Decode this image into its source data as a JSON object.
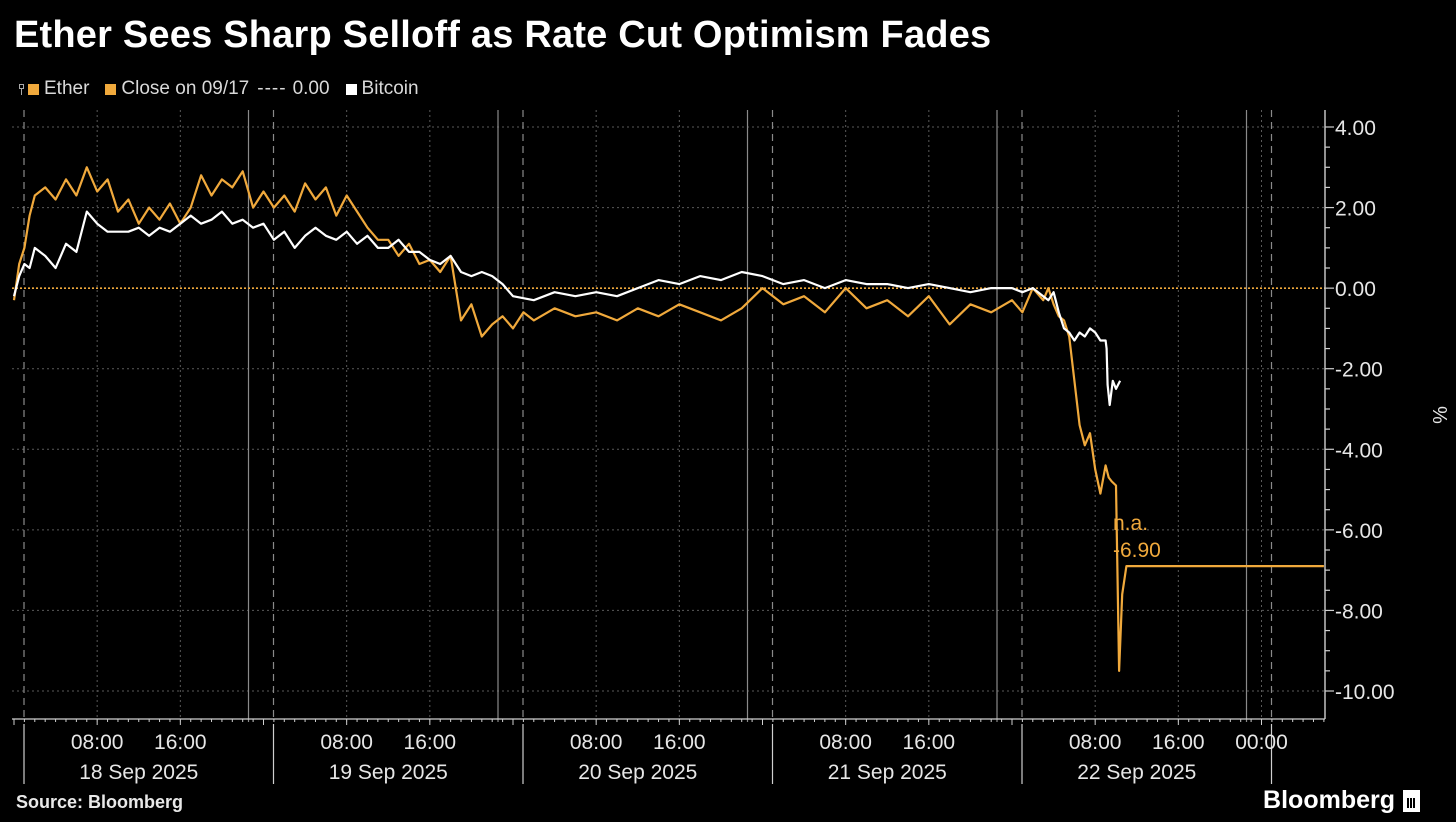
{
  "chart_data": {
    "type": "line",
    "title": "Ether Sees Sharp Selloff as Rate Cut Optimism Fades",
    "legend": {
      "ether": "Ether",
      "close": "Close on 09/17",
      "close_dashes": "----",
      "close_value": "0.00",
      "bitcoin": "Bitcoin"
    },
    "ylabel": "%",
    "ylim": [
      -10,
      4
    ],
    "yticks": [
      4,
      2,
      0,
      -2,
      -4,
      -6,
      -8,
      -10
    ],
    "ytick_labels": [
      "4.00",
      "2.00",
      "0.00",
      "-2.00",
      "-4.00",
      "-6.00",
      "-8.00",
      "-10.00"
    ],
    "xlim_hours": [
      0,
      126
    ],
    "time_ticks": [
      {
        "h": 8,
        "label": "08:00"
      },
      {
        "h": 16,
        "label": "16:00"
      },
      {
        "h": 32,
        "label": "08:00"
      },
      {
        "h": 40,
        "label": "16:00"
      },
      {
        "h": 56,
        "label": "08:00"
      },
      {
        "h": 64,
        "label": "16:00"
      },
      {
        "h": 80,
        "label": "08:00"
      },
      {
        "h": 88,
        "label": "16:00"
      },
      {
        "h": 104,
        "label": "08:00"
      },
      {
        "h": 112,
        "label": "16:00"
      },
      {
        "h": 120,
        "label": "00:00"
      }
    ],
    "day_labels": [
      {
        "h": 12,
        "label": "18 Sep 2025"
      },
      {
        "h": 36,
        "label": "19 Sep 2025"
      },
      {
        "h": 60,
        "label": "20 Sep 2025"
      },
      {
        "h": 84,
        "label": "21 Sep 2025"
      },
      {
        "h": 108,
        "label": "22 Sep 2025"
      }
    ],
    "day_boundaries_hours": [
      0,
      24,
      48,
      72,
      96,
      120
    ],
    "reference_line": {
      "value": 0.0,
      "color": "#f0a93c"
    },
    "last_value_annotation": {
      "label": "n.a.",
      "value": "-6.90",
      "y": -6.9
    },
    "series": [
      {
        "name": "Ether",
        "color": "#f0a93c",
        "x": [
          0,
          0.5,
          1,
          1.5,
          2,
          3,
          4,
          5,
          6,
          7,
          8,
          9,
          10,
          11,
          12,
          13,
          14,
          15,
          16,
          17,
          18,
          19,
          20,
          21,
          22,
          23,
          24,
          25,
          26,
          27,
          28,
          29,
          30,
          31,
          32,
          33,
          34,
          35,
          36,
          37,
          38,
          39,
          40,
          41,
          42,
          43,
          44,
          45,
          46,
          47,
          48,
          49,
          50,
          52,
          54,
          56,
          58,
          60,
          62,
          64,
          66,
          68,
          70,
          72,
          74,
          76,
          78,
          80,
          82,
          84,
          86,
          88,
          90,
          92,
          94,
          96,
          97,
          98,
          99,
          99.5,
          100,
          100.5,
          101,
          101.5,
          102,
          102.5,
          103,
          103.5,
          104,
          104.5,
          105,
          105.3,
          105.6,
          106,
          106.3,
          106.6,
          107,
          126
        ],
        "values": [
          -0.3,
          0.6,
          1.0,
          1.8,
          2.3,
          2.5,
          2.2,
          2.7,
          2.3,
          3.0,
          2.4,
          2.7,
          1.9,
          2.2,
          1.6,
          2.0,
          1.7,
          2.1,
          1.6,
          2.0,
          2.8,
          2.3,
          2.7,
          2.5,
          2.9,
          2.0,
          2.4,
          2.0,
          2.3,
          1.9,
          2.6,
          2.2,
          2.5,
          1.8,
          2.3,
          1.9,
          1.5,
          1.2,
          1.2,
          0.8,
          1.1,
          0.6,
          0.7,
          0.4,
          0.8,
          -0.8,
          -0.4,
          -1.2,
          -0.9,
          -0.7,
          -1.0,
          -0.6,
          -0.8,
          -0.5,
          -0.7,
          -0.6,
          -0.8,
          -0.5,
          -0.7,
          -0.4,
          -0.6,
          -0.8,
          -0.5,
          0.0,
          -0.4,
          -0.2,
          -0.6,
          0.0,
          -0.5,
          -0.3,
          -0.7,
          -0.2,
          -0.9,
          -0.4,
          -0.6,
          -0.3,
          -0.6,
          0.0,
          -0.3,
          0.0,
          -0.4,
          -0.7,
          -0.8,
          -1.2,
          -2.3,
          -3.4,
          -3.9,
          -3.6,
          -4.5,
          -5.1,
          -4.4,
          -4.7,
          -4.8,
          -4.9,
          -9.5,
          -7.6,
          -6.9,
          -6.9
        ]
      },
      {
        "name": "Bitcoin",
        "color": "#ffffff",
        "x": [
          0,
          0.5,
          1,
          1.5,
          2,
          3,
          4,
          5,
          6,
          7,
          8,
          9,
          10,
          11,
          12,
          13,
          14,
          15,
          16,
          17,
          18,
          19,
          20,
          21,
          22,
          23,
          24,
          25,
          26,
          27,
          28,
          29,
          30,
          31,
          32,
          33,
          34,
          35,
          36,
          37,
          38,
          39,
          40,
          41,
          42,
          43,
          44,
          45,
          46,
          47,
          48,
          50,
          52,
          54,
          56,
          58,
          60,
          62,
          64,
          66,
          68,
          70,
          72,
          74,
          76,
          78,
          80,
          82,
          84,
          86,
          88,
          90,
          92,
          94,
          96,
          97,
          98,
          99,
          99.5,
          100,
          100.5,
          101,
          101.5,
          102,
          102.5,
          103,
          103.5,
          104,
          104.5,
          105,
          105.1,
          105.2,
          105.4,
          105.7,
          106,
          106.4
        ],
        "values": [
          -0.2,
          0.3,
          0.6,
          0.5,
          1.0,
          0.8,
          0.5,
          1.1,
          0.9,
          1.9,
          1.6,
          1.4,
          1.4,
          1.4,
          1.5,
          1.3,
          1.5,
          1.4,
          1.6,
          1.8,
          1.6,
          1.7,
          1.9,
          1.6,
          1.7,
          1.5,
          1.6,
          1.2,
          1.4,
          1.0,
          1.3,
          1.5,
          1.3,
          1.2,
          1.4,
          1.1,
          1.3,
          1.0,
          1.0,
          1.2,
          0.9,
          0.9,
          0.7,
          0.6,
          0.8,
          0.4,
          0.3,
          0.4,
          0.3,
          0.1,
          -0.2,
          -0.3,
          -0.1,
          -0.2,
          -0.1,
          -0.2,
          0.0,
          0.2,
          0.1,
          0.3,
          0.2,
          0.4,
          0.3,
          0.1,
          0.2,
          0.0,
          0.2,
          0.1,
          0.1,
          0.0,
          0.1,
          0.0,
          -0.1,
          0.0,
          0.0,
          -0.1,
          0.0,
          -0.2,
          -0.3,
          -0.1,
          -0.6,
          -1.0,
          -1.1,
          -1.3,
          -1.1,
          -1.2,
          -1.0,
          -1.1,
          -1.3,
          -1.3,
          -1.5,
          -2.4,
          -2.9,
          -2.3,
          -2.5,
          -2.3
        ]
      }
    ]
  },
  "footer": {
    "source": "Source: Bloomberg",
    "brand": "Bloomberg"
  }
}
